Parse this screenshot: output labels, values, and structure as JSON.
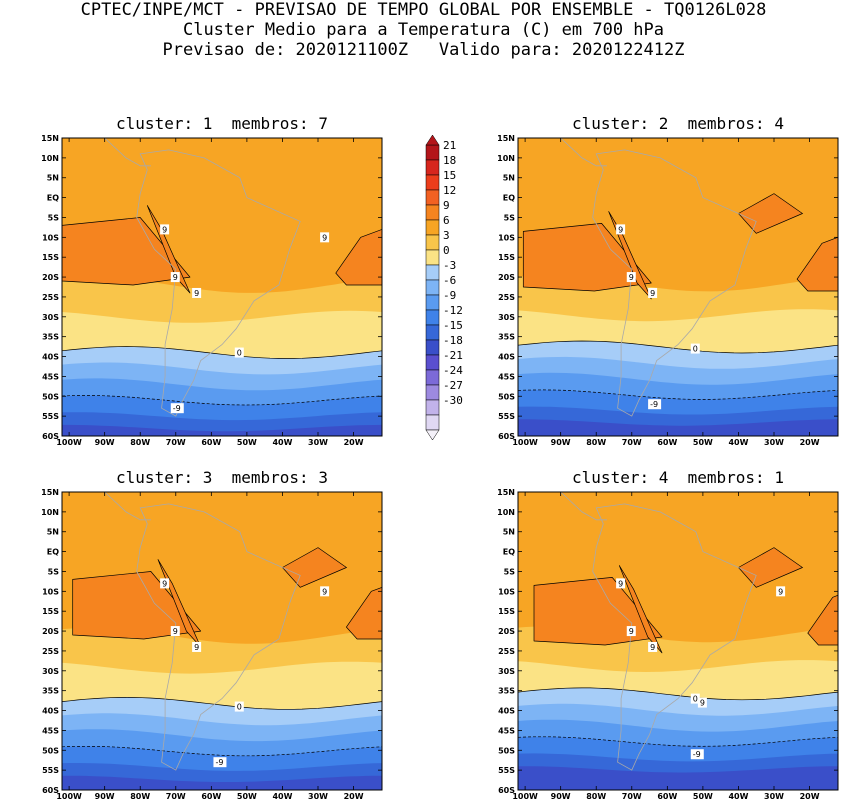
{
  "header": {
    "line1": "CPTEC/INPE/MCT - PREVISAO DE TEMPO GLOBAL POR ENSEMBLE - TQ0126L028",
    "line2": "Cluster Medio para a Temperatura (C) em 700 hPa",
    "line3": "Previsao de: 2020121100Z   Valido para: 2020122412Z"
  },
  "panels": [
    {
      "title": "cluster: 1  membros: 7",
      "contour_labels": [
        "9",
        "9",
        "9",
        "9",
        "0",
        "-9"
      ]
    },
    {
      "title": "cluster: 2  membros: 4",
      "contour_labels": [
        "9",
        "9",
        "9",
        "0",
        "-9"
      ]
    },
    {
      "title": "cluster: 3  membros: 3",
      "contour_labels": [
        "9",
        "9",
        "9",
        "9",
        "0",
        "-9"
      ]
    },
    {
      "title": "cluster: 4  membros: 1",
      "contour_labels": [
        "9",
        "9",
        "9",
        "9",
        "9",
        "0",
        "-9"
      ]
    }
  ],
  "axes": {
    "lat_ticks": [
      "15N",
      "10N",
      "5N",
      "EQ",
      "5S",
      "10S",
      "15S",
      "20S",
      "25S",
      "30S",
      "35S",
      "40S",
      "45S",
      "50S",
      "55S",
      "60S"
    ],
    "lon_ticks": [
      "100W",
      "90W",
      "80W",
      "70W",
      "60W",
      "50W",
      "40W",
      "30W",
      "20W"
    ]
  },
  "colorbar": {
    "labels": [
      "21",
      "18",
      "15",
      "12",
      "9",
      "6",
      "3",
      "0",
      "-3",
      "-6",
      "-9",
      "-12",
      "-15",
      "-18",
      "-21",
      "-24",
      "-27",
      "-30"
    ],
    "colors": [
      "#b3151a",
      "#d7261d",
      "#ec3d1b",
      "#f26122",
      "#f5841f",
      "#f7a524",
      "#f9c54a",
      "#fbe385",
      "#a6cdf8",
      "#7db4f5",
      "#5a9bf0",
      "#3f82e9",
      "#3668d8",
      "#3a4fc9",
      "#5a4fcf",
      "#7c6ad8",
      "#9d8ae0",
      "#c2b3ea",
      "#e0d8f3"
    ]
  },
  "chart_data": {
    "type": "heatmap",
    "variable": "Temperatura (C) em 700 hPa",
    "xlim": [
      -102,
      -12
    ],
    "ylim": [
      -60,
      15
    ],
    "levels": [
      -30,
      -27,
      -24,
      -21,
      -18,
      -15,
      -12,
      -9,
      -6,
      -3,
      0,
      3,
      6,
      9,
      12,
      15,
      18,
      21
    ],
    "clusters": [
      {
        "cluster": 1,
        "membros": 7,
        "zero_isotherm_lat": -39,
        "minus9_isotherm_lat": -52
      },
      {
        "cluster": 2,
        "membros": 4,
        "zero_isotherm_lat": -38,
        "minus9_isotherm_lat": -51
      },
      {
        "cluster": 3,
        "membros": 3,
        "zero_isotherm_lat": -39,
        "minus9_isotherm_lat": -51
      },
      {
        "cluster": 4,
        "membros": 1,
        "zero_isotherm_lat": -37,
        "minus9_isotherm_lat": -50
      }
    ]
  }
}
